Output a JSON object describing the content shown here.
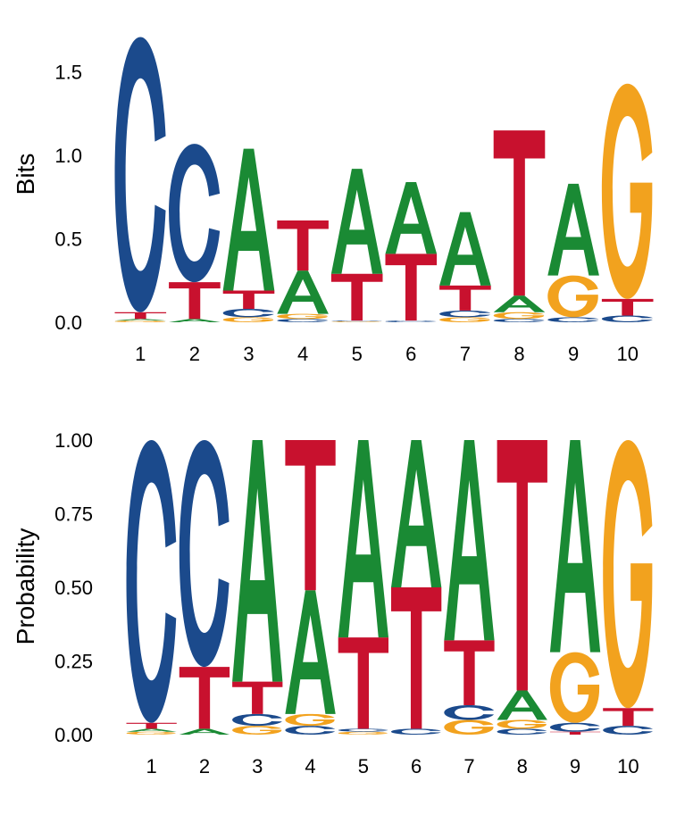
{
  "colors": {
    "A": "#1a8a34",
    "C": "#1b4a8c",
    "G": "#f2a21e",
    "T": "#c8112e"
  },
  "chart_data": [
    {
      "type": "sequence-logo",
      "ylabel": "Bits",
      "ylim": [
        0,
        1.75
      ],
      "yticks": [
        "0.0",
        "0.5",
        "1.0",
        "1.5"
      ],
      "ytick_values": [
        0,
        0.5,
        1.0,
        1.5
      ],
      "positions": [
        "1",
        "2",
        "3",
        "4",
        "5",
        "6",
        "7",
        "8",
        "9",
        "10"
      ],
      "stacks": [
        [
          {
            "letter": "G",
            "value": 0.01
          },
          {
            "letter": "A",
            "value": 0.01
          },
          {
            "letter": "T",
            "value": 0.04
          },
          {
            "letter": "C",
            "value": 1.65
          }
        ],
        [
          {
            "letter": "A",
            "value": 0.02
          },
          {
            "letter": "T",
            "value": 0.22
          },
          {
            "letter": "C",
            "value": 0.83
          }
        ],
        [
          {
            "letter": "G",
            "value": 0.03
          },
          {
            "letter": "C",
            "value": 0.05
          },
          {
            "letter": "T",
            "value": 0.11
          },
          {
            "letter": "A",
            "value": 0.85
          }
        ],
        [
          {
            "letter": "C",
            "value": 0.02
          },
          {
            "letter": "G",
            "value": 0.03
          },
          {
            "letter": "A",
            "value": 0.26
          },
          {
            "letter": "T",
            "value": 0.3
          }
        ],
        [
          {
            "letter": "G",
            "value": 0.005
          },
          {
            "letter": "C",
            "value": 0.005
          },
          {
            "letter": "T",
            "value": 0.28
          },
          {
            "letter": "A",
            "value": 0.63
          }
        ],
        [
          {
            "letter": "C",
            "value": 0.01
          },
          {
            "letter": "T",
            "value": 0.4
          },
          {
            "letter": "A",
            "value": 0.43
          }
        ],
        [
          {
            "letter": "G",
            "value": 0.03
          },
          {
            "letter": "C",
            "value": 0.04
          },
          {
            "letter": "T",
            "value": 0.15
          },
          {
            "letter": "A",
            "value": 0.44
          }
        ],
        [
          {
            "letter": "C",
            "value": 0.02
          },
          {
            "letter": "G",
            "value": 0.04
          },
          {
            "letter": "A",
            "value": 0.1
          },
          {
            "letter": "T",
            "value": 0.99
          }
        ],
        [
          {
            "letter": "C",
            "value": 0.03
          },
          {
            "letter": "G",
            "value": 0.25
          },
          {
            "letter": "A",
            "value": 0.55
          }
        ],
        [
          {
            "letter": "C",
            "value": 0.04
          },
          {
            "letter": "T",
            "value": 0.1
          },
          {
            "letter": "G",
            "value": 1.29
          }
        ]
      ]
    },
    {
      "type": "sequence-logo",
      "ylabel": "Probability",
      "ylim": [
        0,
        1.0
      ],
      "yticks": [
        "0.00",
        "0.25",
        "0.50",
        "0.75",
        "1.00"
      ],
      "ytick_values": [
        0,
        0.25,
        0.5,
        0.75,
        1.0
      ],
      "positions": [
        "1",
        "2",
        "3",
        "4",
        "5",
        "6",
        "7",
        "8",
        "9",
        "10"
      ],
      "stacks": [
        [
          {
            "letter": "G",
            "value": 0.01
          },
          {
            "letter": "A",
            "value": 0.01
          },
          {
            "letter": "T",
            "value": 0.02
          },
          {
            "letter": "C",
            "value": 0.96
          }
        ],
        [
          {
            "letter": "A",
            "value": 0.02
          },
          {
            "letter": "T",
            "value": 0.21
          },
          {
            "letter": "C",
            "value": 0.77
          }
        ],
        [
          {
            "letter": "G",
            "value": 0.03
          },
          {
            "letter": "C",
            "value": 0.04
          },
          {
            "letter": "T",
            "value": 0.11
          },
          {
            "letter": "A",
            "value": 0.82
          }
        ],
        [
          {
            "letter": "C",
            "value": 0.03
          },
          {
            "letter": "G",
            "value": 0.04
          },
          {
            "letter": "A",
            "value": 0.42
          },
          {
            "letter": "T",
            "value": 0.51
          }
        ],
        [
          {
            "letter": "G",
            "value": 0.01
          },
          {
            "letter": "C",
            "value": 0.01
          },
          {
            "letter": "T",
            "value": 0.31
          },
          {
            "letter": "A",
            "value": 0.67
          }
        ],
        [
          {
            "letter": "C",
            "value": 0.02
          },
          {
            "letter": "T",
            "value": 0.48
          },
          {
            "letter": "A",
            "value": 0.5
          }
        ],
        [
          {
            "letter": "G",
            "value": 0.05
          },
          {
            "letter": "C",
            "value": 0.05
          },
          {
            "letter": "T",
            "value": 0.22
          },
          {
            "letter": "A",
            "value": 0.68
          }
        ],
        [
          {
            "letter": "C",
            "value": 0.02
          },
          {
            "letter": "G",
            "value": 0.03
          },
          {
            "letter": "A",
            "value": 0.1
          },
          {
            "letter": "T",
            "value": 0.85
          }
        ],
        [
          {
            "letter": "T",
            "value": 0.01
          },
          {
            "letter": "C",
            "value": 0.03
          },
          {
            "letter": "G",
            "value": 0.24
          },
          {
            "letter": "A",
            "value": 0.72
          }
        ],
        [
          {
            "letter": "C",
            "value": 0.03
          },
          {
            "letter": "T",
            "value": 0.06
          },
          {
            "letter": "G",
            "value": 0.91
          }
        ]
      ]
    }
  ]
}
